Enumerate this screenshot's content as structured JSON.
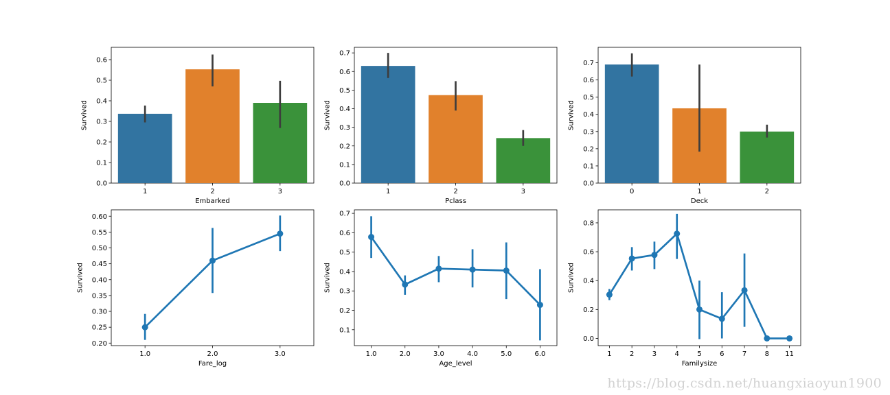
{
  "watermark": "https://blog.csdn.net/huangxiaoyun1900",
  "chart_data": [
    {
      "type": "bar",
      "xlabel": "Embarked",
      "ylabel": "Survived",
      "categories": [
        "1",
        "2",
        "3"
      ],
      "values": [
        0.337,
        0.553,
        0.39
      ],
      "ci": [
        [
          0.295,
          0.377
        ],
        [
          0.47,
          0.625
        ],
        [
          0.268,
          0.497
        ]
      ],
      "colors": [
        "#3274a1",
        "#e1812c",
        "#3a923a"
      ],
      "ylim": [
        0,
        0.66
      ],
      "yticks": [
        0.0,
        0.1,
        0.2,
        0.3,
        0.4,
        0.5,
        0.6
      ],
      "ytick_labels": [
        "0.0",
        "0.1",
        "0.2",
        "0.3",
        "0.4",
        "0.5",
        "0.6"
      ]
    },
    {
      "type": "bar",
      "xlabel": "Pclass",
      "ylabel": "Survived",
      "categories": [
        "1",
        "2",
        "3"
      ],
      "values": [
        0.63,
        0.473,
        0.242
      ],
      "ci": [
        [
          0.565,
          0.7
        ],
        [
          0.39,
          0.548
        ],
        [
          0.2,
          0.285
        ]
      ],
      "colors": [
        "#3274a1",
        "#e1812c",
        "#3a923a"
      ],
      "ylim": [
        0,
        0.73
      ],
      "yticks": [
        0.0,
        0.1,
        0.2,
        0.3,
        0.4,
        0.5,
        0.6,
        0.7
      ],
      "ytick_labels": [
        "0.0",
        "0.1",
        "0.2",
        "0.3",
        "0.4",
        "0.5",
        "0.6",
        "0.7"
      ]
    },
    {
      "type": "bar",
      "xlabel": "Deck",
      "ylabel": "Survived",
      "categories": [
        "0",
        "1",
        "2"
      ],
      "values": [
        0.69,
        0.435,
        0.3
      ],
      "ci": [
        [
          0.62,
          0.755
        ],
        [
          0.183,
          0.69
        ],
        [
          0.265,
          0.34
        ]
      ],
      "colors": [
        "#3274a1",
        "#e1812c",
        "#3a923a"
      ],
      "ylim": [
        0,
        0.79
      ],
      "yticks": [
        0.0,
        0.1,
        0.2,
        0.3,
        0.4,
        0.5,
        0.6,
        0.7
      ],
      "ytick_labels": [
        "0.0",
        "0.1",
        "0.2",
        "0.3",
        "0.4",
        "0.5",
        "0.6",
        "0.7"
      ]
    },
    {
      "type": "line",
      "xlabel": "Fare_log",
      "ylabel": "Survived",
      "categories": [
        "1.0",
        "2.0",
        "3.0"
      ],
      "values": [
        0.25,
        0.46,
        0.545
      ],
      "ci": [
        [
          0.21,
          0.292
        ],
        [
          0.358,
          0.563
        ],
        [
          0.49,
          0.602
        ]
      ],
      "color": "#1f77b4",
      "ylim": [
        0.192,
        0.62
      ],
      "yticks": [
        0.2,
        0.25,
        0.3,
        0.35,
        0.4,
        0.45,
        0.5,
        0.55,
        0.6
      ],
      "ytick_labels": [
        "0.20",
        "0.25",
        "0.30",
        "0.35",
        "0.40",
        "0.45",
        "0.50",
        "0.55",
        "0.60"
      ]
    },
    {
      "type": "line",
      "xlabel": "Age_level",
      "ylabel": "Survived",
      "categories": [
        "1.0",
        "2.0",
        "3.0",
        "4.0",
        "5.0",
        "6.0"
      ],
      "values": [
        0.578,
        0.333,
        0.415,
        0.41,
        0.405,
        0.228
      ],
      "ci": [
        [
          0.47,
          0.685
        ],
        [
          0.28,
          0.38
        ],
        [
          0.345,
          0.48
        ],
        [
          0.318,
          0.515
        ],
        [
          0.258,
          0.55
        ],
        [
          0.045,
          0.412
        ]
      ],
      "color": "#1f77b4",
      "ylim": [
        0.018,
        0.718
      ],
      "yticks": [
        0.1,
        0.2,
        0.3,
        0.4,
        0.5,
        0.6,
        0.7
      ],
      "ytick_labels": [
        "0.1",
        "0.2",
        "0.3",
        "0.4",
        "0.5",
        "0.6",
        "0.7"
      ]
    },
    {
      "type": "line",
      "xlabel": "Familysize",
      "ylabel": "Survived",
      "categories": [
        "1",
        "2",
        "3",
        "4",
        "5",
        "6",
        "7",
        "8",
        "11"
      ],
      "values": [
        0.303,
        0.553,
        0.578,
        0.725,
        0.2,
        0.136,
        0.333,
        0.0,
        0.0
      ],
      "ci": [
        [
          0.265,
          0.342
        ],
        [
          0.47,
          0.632
        ],
        [
          0.48,
          0.67
        ],
        [
          0.55,
          0.862
        ],
        [
          -0.005,
          0.4
        ],
        [
          0.0,
          0.32
        ],
        [
          0.08,
          0.588
        ],
        [
          0.0,
          0.0
        ],
        [
          0.0,
          0.0
        ]
      ],
      "color": "#1f77b4",
      "ylim": [
        -0.05,
        0.89
      ],
      "yticks": [
        0.0,
        0.2,
        0.4,
        0.6,
        0.8
      ],
      "ytick_labels": [
        "0.0",
        "0.2",
        "0.4",
        "0.6",
        "0.8"
      ]
    }
  ]
}
